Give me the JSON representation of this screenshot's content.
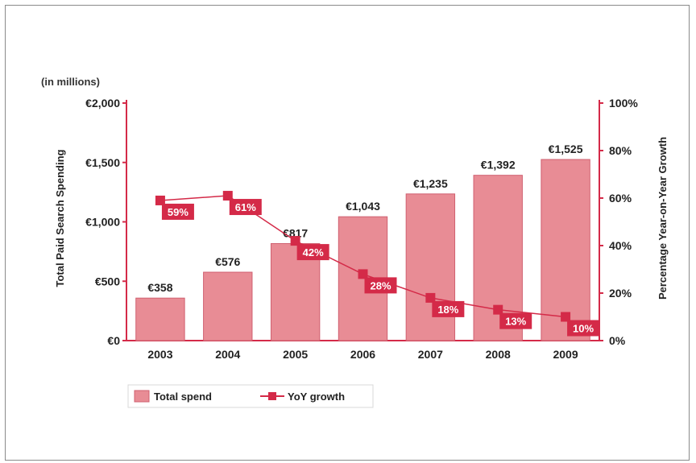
{
  "colors": {
    "bar_fill": "#e88c95",
    "bar_stroke": "#d06070",
    "line": "#d42a48",
    "axis": "#d42a48"
  },
  "chart_data": {
    "type": "bar",
    "unit_note": "(in millions)",
    "categories": [
      "2003",
      "2004",
      "2005",
      "2006",
      "2007",
      "2008",
      "2009"
    ],
    "series": [
      {
        "name": "Total spend",
        "type": "bar",
        "axis": "left",
        "values": [
          358,
          576,
          817,
          1043,
          1235,
          1392,
          1525
        ],
        "labels": [
          "€358",
          "€576",
          "€817",
          "€1,043",
          "€1,235",
          "€1,392",
          "€1,525"
        ]
      },
      {
        "name": "YoY growth",
        "type": "line",
        "axis": "right",
        "values": [
          59,
          61,
          42,
          28,
          18,
          13,
          10
        ],
        "labels": [
          "59%",
          "61%",
          "42%",
          "28%",
          "18%",
          "13%",
          "10%"
        ]
      }
    ],
    "ylabel": "Total Paid Search Spending",
    "y2label": "Percentage Year-on-Year Growth",
    "ylim": [
      0,
      2000
    ],
    "y2lim": [
      0,
      100
    ],
    "yticks": [
      "€0",
      "€500",
      "€1,000",
      "€1,500",
      "€2,000"
    ],
    "y2ticks": [
      "0%",
      "20%",
      "40%",
      "60%",
      "80%",
      "100%"
    ],
    "legend": {
      "placement": "bottom-left",
      "items": [
        "Total spend",
        "YoY growth"
      ]
    },
    "grid": false
  }
}
